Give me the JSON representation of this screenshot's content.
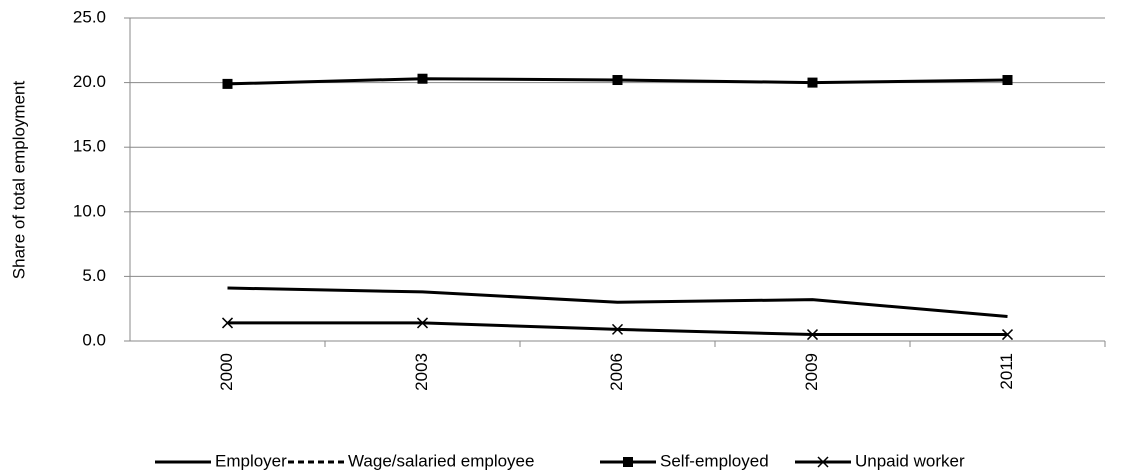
{
  "chart_data": {
    "type": "line",
    "y_label": "Share of total employment",
    "categories": [
      "2000",
      "2003",
      "2006",
      "2009",
      "2011"
    ],
    "series": [
      {
        "name": "Employer",
        "color": "#000000",
        "dash": false,
        "marker": null,
        "values": [
          4.1,
          3.8,
          3.0,
          3.2,
          1.9
        ]
      },
      {
        "name": "Wage/salaried employee",
        "color": "#000000",
        "dash": true,
        "marker": null,
        "values": [
          null,
          null,
          null,
          null,
          null
        ]
      },
      {
        "name": "Self-employed",
        "color": "#000000",
        "dash": false,
        "marker": "square",
        "values": [
          19.9,
          20.3,
          20.2,
          20.0,
          20.2
        ]
      },
      {
        "name": "Unpaid worker",
        "color": "#000000",
        "dash": false,
        "marker": "x",
        "values": [
          1.4,
          1.4,
          0.9,
          0.5,
          0.5
        ]
      }
    ],
    "ylim": [
      0,
      25
    ],
    "yticks": [
      {
        "value": 0,
        "label": "0.0"
      },
      {
        "value": 5,
        "label": "5.0"
      },
      {
        "value": 10,
        "label": "10.0"
      },
      {
        "value": 15,
        "label": "15.0"
      },
      {
        "value": 20,
        "label": "20.0"
      },
      {
        "value": 25,
        "label": "25.0"
      }
    ],
    "grid": true
  }
}
